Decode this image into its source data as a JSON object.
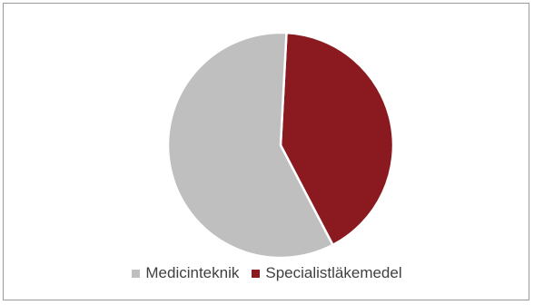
{
  "chart_data": {
    "type": "pie",
    "title": "",
    "slices": [
      {
        "label": "Medicinteknik",
        "value": 58.5,
        "color": "#bfbfbf"
      },
      {
        "label": "Specialistläkemedel",
        "value": 41.5,
        "color": "#8a1a1f"
      }
    ],
    "legend": "bottom",
    "start_angle_deg": 3
  }
}
